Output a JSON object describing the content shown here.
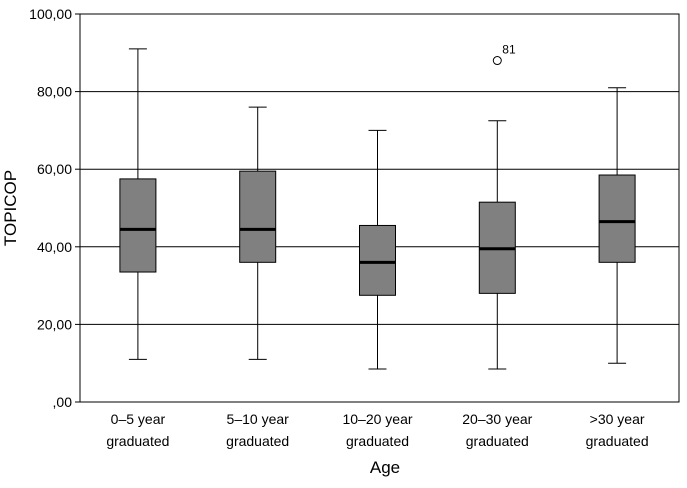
{
  "chart_data": {
    "type": "box",
    "title": "",
    "xlabel": "Age",
    "ylabel": "TOPICOP",
    "ylim": [
      0,
      100
    ],
    "yticks": [
      {
        "value": 0,
        "label": ",00"
      },
      {
        "value": 20,
        "label": "20,00"
      },
      {
        "value": 40,
        "label": "40,00"
      },
      {
        "value": 60,
        "label": "60,00"
      },
      {
        "value": 80,
        "label": "80,00"
      },
      {
        "value": 100,
        "label": "100,00"
      }
    ],
    "grid": "horizontal",
    "box_color": "#808080",
    "categories": [
      {
        "line1": "0–5 year",
        "line2": "graduated"
      },
      {
        "line1": "5–10 year",
        "line2": "graduated"
      },
      {
        "line1": "10–20 year",
        "line2": "graduated"
      },
      {
        "line1": "20–30 year",
        "line2": "graduated"
      },
      {
        "line1": ">30 year",
        "line2": "graduated"
      }
    ],
    "boxes": [
      {
        "whisker_low": 11,
        "q1": 33.5,
        "median": 44.5,
        "q3": 57.5,
        "whisker_high": 91,
        "outliers": []
      },
      {
        "whisker_low": 11,
        "q1": 36,
        "median": 44.5,
        "q3": 59.5,
        "whisker_high": 76,
        "outliers": []
      },
      {
        "whisker_low": 8.5,
        "q1": 27.5,
        "median": 36,
        "q3": 45.5,
        "whisker_high": 70,
        "outliers": []
      },
      {
        "whisker_low": 8.5,
        "q1": 28,
        "median": 39.5,
        "q3": 51.5,
        "whisker_high": 72.5,
        "outliers": [
          {
            "value": 88,
            "label": "81"
          }
        ]
      },
      {
        "whisker_low": 10,
        "q1": 36,
        "median": 46.5,
        "q3": 58.5,
        "whisker_high": 81,
        "outliers": []
      }
    ]
  }
}
